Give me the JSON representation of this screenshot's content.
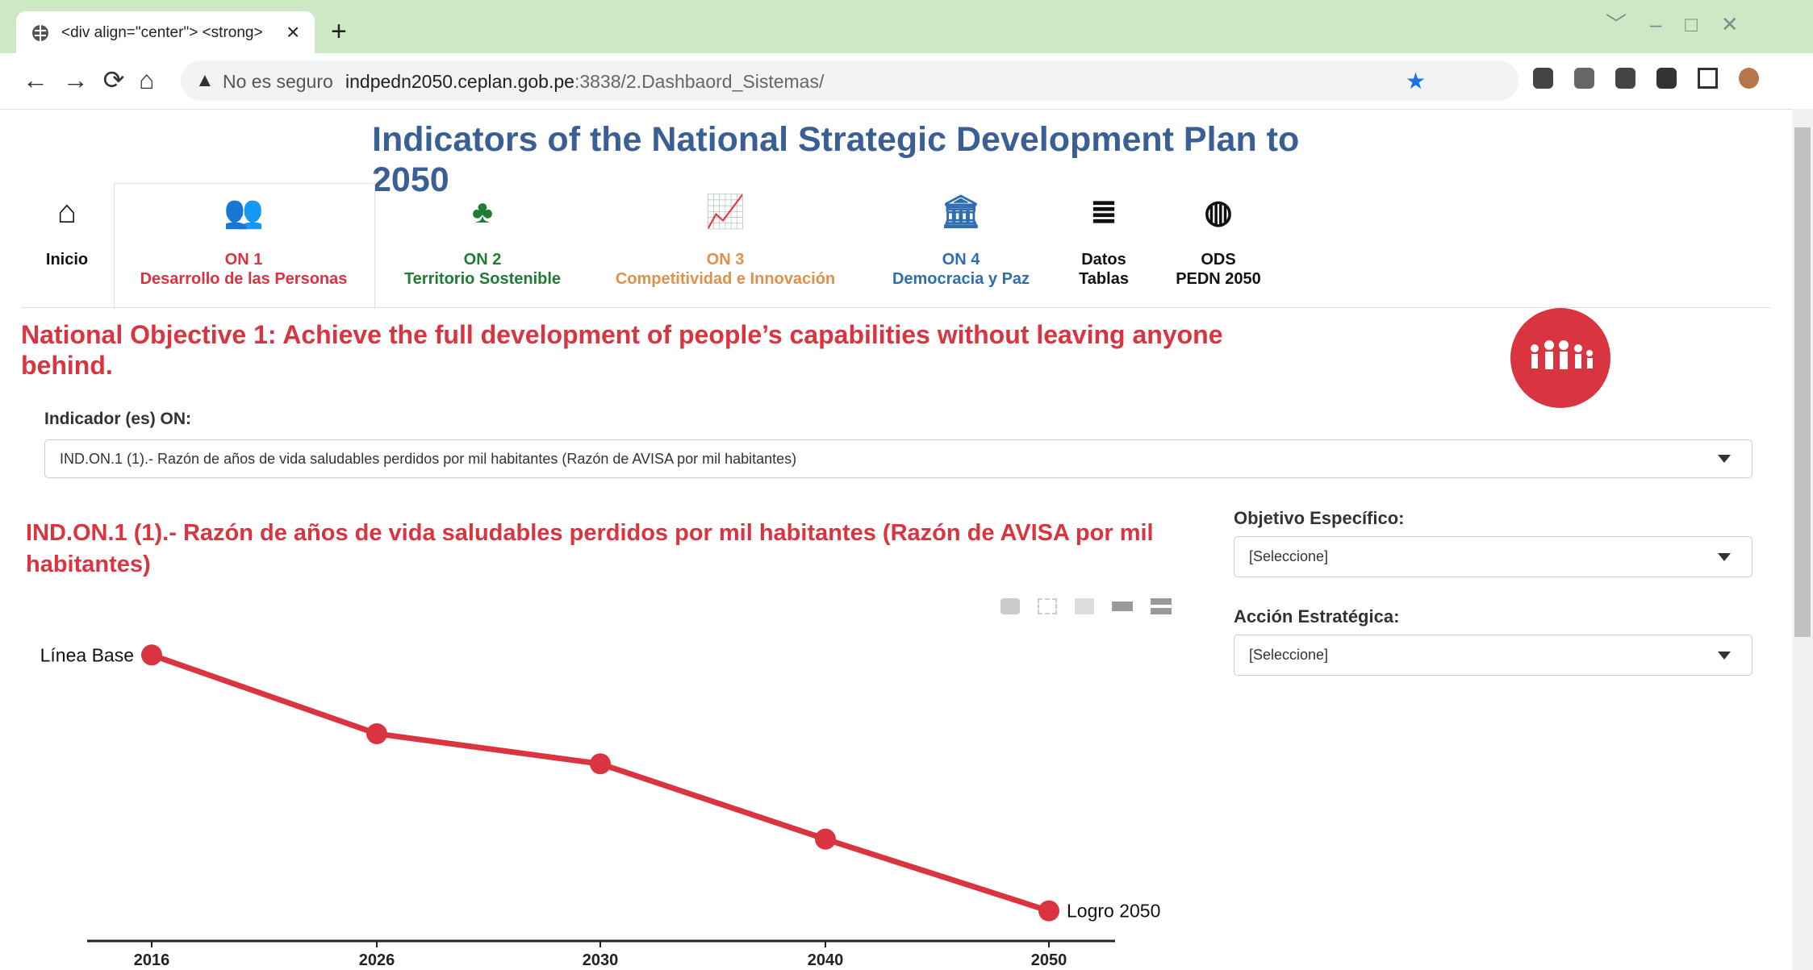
{
  "browser": {
    "tab_title": "<div align=\"center\"> <strong>",
    "security": "No es seguro",
    "url_host": "indpedn2050.ceplan.gob.pe",
    "url_path": ":3838/2.Dashbaord_Sistemas/"
  },
  "header": {
    "title": "Indicators of the National Strategic Development Plan to 2050"
  },
  "nav": [
    {
      "label": "Inicio",
      "color": "#111111"
    },
    {
      "label": "ON 1",
      "sublabel": "Desarrollo de las Personas",
      "color": "#d9343f"
    },
    {
      "label": "ON 2",
      "sublabel": "Territorio Sostenible",
      "color": "#1e7d32"
    },
    {
      "label": "ON 3",
      "sublabel": "Competitividad e Innovación",
      "color": "#e0904a"
    },
    {
      "label": "ON 4",
      "sublabel": "Democracia y Paz",
      "color": "#2f6db0"
    },
    {
      "label": "Datos",
      "sublabel": "Tablas",
      "color": "#111111"
    },
    {
      "label": "ODS",
      "sublabel": "PEDN 2050",
      "color": "#111111"
    }
  ],
  "objective": "National Objective 1: Achieve the full development of people’s capabilities without leaving anyone behind.",
  "indicator_label": "Indicador (es) ON:",
  "indicator_select": "IND.ON.1 (1).- Razón de años de vida saludables perdidos por mil habitantes (Razón de AVISA por mil habitantes)",
  "filters": [
    {
      "label": "Objetivo Específico:",
      "value": "[Seleccione]"
    },
    {
      "label": "Acción Estratégica:",
      "value": "[Seleccione]"
    }
  ],
  "chart_data": {
    "type": "line",
    "title": "IND.ON.1 (1).- Razón de años de vida saludables perdidos por mil habitantes (Razón de AVISA por mil habitantes)",
    "categories": [
      "2016",
      "2026",
      "2030",
      "2040",
      "2050"
    ],
    "values": [
      247,
      179,
      153,
      88,
      26
    ],
    "color": "#d9343f",
    "ylim": [
      0,
      250
    ],
    "annotations": [
      "Línea Base",
      "Logro 2050"
    ]
  }
}
